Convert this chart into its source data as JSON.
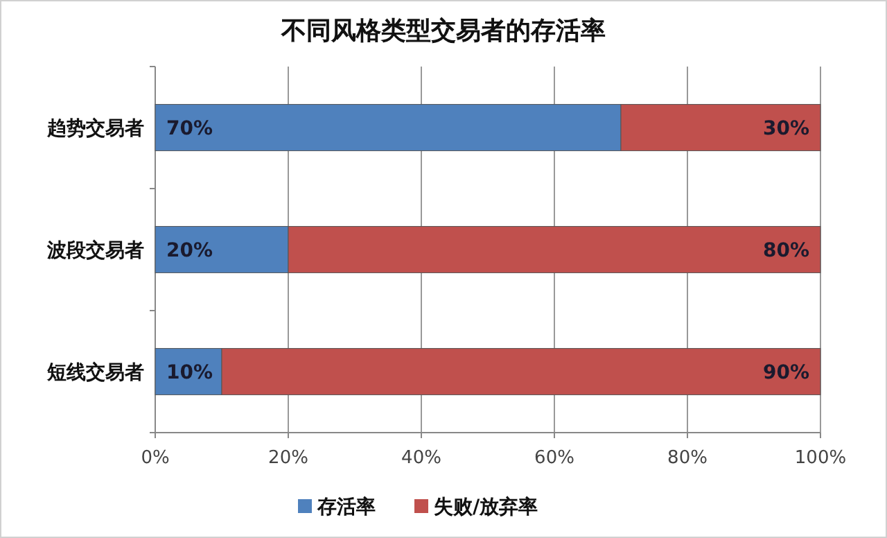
{
  "chart_data": {
    "type": "bar",
    "orientation": "horizontal",
    "stacked": true,
    "title": "不同风格类型交易者的存活率",
    "categories": [
      "趋势交易者",
      "波段交易者",
      "短线交易者"
    ],
    "series": [
      {
        "name": "存活率",
        "color": "#4f81bd",
        "values": [
          70,
          20,
          10
        ],
        "value_labels": [
          "70%",
          "20%",
          "10%"
        ]
      },
      {
        "name": "失败/放弃率",
        "color": "#c0504d",
        "values": [
          30,
          80,
          90
        ],
        "value_labels": [
          "30%",
          "80%",
          "90%"
        ]
      }
    ],
    "xlim": [
      0,
      100
    ],
    "xticks": [
      {
        "value": 0,
        "label": "0%"
      },
      {
        "value": 20,
        "label": "20%"
      },
      {
        "value": 40,
        "label": "40%"
      },
      {
        "value": 60,
        "label": "60%"
      },
      {
        "value": 80,
        "label": "80%"
      },
      {
        "value": 100,
        "label": "100%"
      }
    ],
    "grid": "x",
    "legend": "bottom"
  }
}
